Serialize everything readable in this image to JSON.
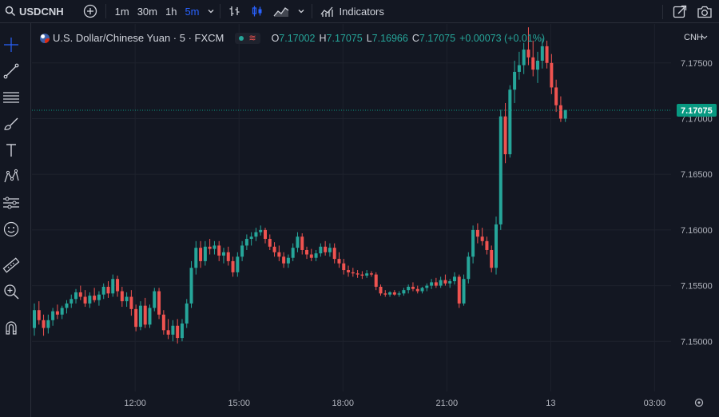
{
  "topbar": {
    "symbol": "USDCNH",
    "intervals": [
      {
        "label": "1m",
        "active": false
      },
      {
        "label": "30m",
        "active": false
      },
      {
        "label": "1h",
        "active": false
      },
      {
        "label": "5m",
        "active": true
      }
    ],
    "indicators_label": "Indicators"
  },
  "legend": {
    "title": "U.S. Dollar/Chinese Yuan · 5 · FXCM",
    "ohlc": [
      {
        "key": "O",
        "value": "7.17002"
      },
      {
        "key": "H",
        "value": "7.17075"
      },
      {
        "key": "L",
        "value": "7.16966"
      },
      {
        "key": "C",
        "value": "7.17075"
      }
    ],
    "change": "+0.00073 (+0.01%)"
  },
  "colors": {
    "background": "#131722",
    "up": "#26a69a",
    "down": "#ef5350",
    "grid": "#1e222d",
    "axis_text": "#b2b5be",
    "price_tag": "#089981",
    "active_interval": "#2962ff"
  },
  "chart_data": {
    "type": "candlestick",
    "currency_label": "CNH",
    "y_ticks": [
      "7.17500",
      "7.17000",
      "7.16500",
      "7.16000",
      "7.15500",
      "7.15000"
    ],
    "y_tick_values": [
      7.175,
      7.17,
      7.165,
      7.16,
      7.155,
      7.15
    ],
    "x_ticks": [
      "12:00",
      "15:00",
      "18:00",
      "21:00",
      "13",
      "03:00"
    ],
    "last_price_label": "7.17075",
    "last_price": 7.17075,
    "ylim": [
      7.1455,
      7.1785
    ],
    "grid": true,
    "candles": [
      [
        7.1512,
        7.1534,
        7.1505,
        7.1528
      ],
      [
        7.1528,
        7.1536,
        7.1515,
        7.1519
      ],
      [
        7.1519,
        7.1524,
        7.1505,
        7.1512
      ],
      [
        7.1512,
        7.1524,
        7.1507,
        7.1519
      ],
      [
        7.1519,
        7.153,
        7.1514,
        7.1527
      ],
      [
        7.1527,
        7.1533,
        7.152,
        7.1524
      ],
      [
        7.1524,
        7.1532,
        7.152,
        7.153
      ],
      [
        7.153,
        7.1537,
        7.1525,
        7.1534
      ],
      [
        7.1534,
        7.1542,
        7.153,
        7.1538
      ],
      [
        7.1538,
        7.1547,
        7.1534,
        7.1544
      ],
      [
        7.1544,
        7.155,
        7.1537,
        7.154
      ],
      [
        7.154,
        7.1546,
        7.1531,
        7.1534
      ],
      [
        7.1534,
        7.1544,
        7.153,
        7.1541
      ],
      [
        7.1541,
        7.1548,
        7.1535,
        7.1537
      ],
      [
        7.1537,
        7.1545,
        7.1532,
        7.1542
      ],
      [
        7.1542,
        7.1552,
        7.1538,
        7.1549
      ],
      [
        7.1549,
        7.1554,
        7.1539,
        7.1543
      ],
      [
        7.1543,
        7.156,
        7.154,
        7.1556
      ],
      [
        7.1556,
        7.1559,
        7.154,
        7.1545
      ],
      [
        7.1545,
        7.1549,
        7.1531,
        7.1536
      ],
      [
        7.1536,
        7.1544,
        7.1531,
        7.154
      ],
      [
        7.154,
        7.1546,
        7.1523,
        7.1529
      ],
      [
        7.1529,
        7.1533,
        7.1509,
        7.1513
      ],
      [
        7.1513,
        7.1536,
        7.151,
        7.1532
      ],
      [
        7.1532,
        7.1539,
        7.1512,
        7.1515
      ],
      [
        7.1515,
        7.1533,
        7.1512,
        7.153
      ],
      [
        7.153,
        7.1548,
        7.1527,
        7.1545
      ],
      [
        7.1545,
        7.1548,
        7.152,
        7.1524
      ],
      [
        7.1524,
        7.1528,
        7.1506,
        7.151
      ],
      [
        7.151,
        7.152,
        7.1502,
        7.1506
      ],
      [
        7.1506,
        7.1519,
        7.15,
        7.1514
      ],
      [
        7.1514,
        7.152,
        7.1498,
        7.1503
      ],
      [
        7.1503,
        7.152,
        7.15,
        7.1516
      ],
      [
        7.1516,
        7.1538,
        7.1512,
        7.1534
      ],
      [
        7.1534,
        7.1572,
        7.153,
        7.1566
      ],
      [
        7.1566,
        7.159,
        7.156,
        7.1584
      ],
      [
        7.1584,
        7.159,
        7.1566,
        7.1572
      ],
      [
        7.1572,
        7.159,
        7.1568,
        7.1585
      ],
      [
        7.1585,
        7.1592,
        7.1578,
        7.1583
      ],
      [
        7.1583,
        7.159,
        7.1578,
        7.1586
      ],
      [
        7.1586,
        7.159,
        7.1572,
        7.1577
      ],
      [
        7.1577,
        7.1584,
        7.157,
        7.158
      ],
      [
        7.158,
        7.1585,
        7.1568,
        7.1572
      ],
      [
        7.1572,
        7.1576,
        7.1558,
        7.1562
      ],
      [
        7.1562,
        7.158,
        7.1558,
        7.1576
      ],
      [
        7.1576,
        7.159,
        7.1572,
        7.1586
      ],
      [
        7.1586,
        7.1596,
        7.1582,
        7.1592
      ],
      [
        7.1592,
        7.1598,
        7.1586,
        7.1594
      ],
      [
        7.1594,
        7.1602,
        7.159,
        7.1598
      ],
      [
        7.1598,
        7.1604,
        7.1595,
        7.16
      ],
      [
        7.16,
        7.1602,
        7.1588,
        7.1592
      ],
      [
        7.1592,
        7.1596,
        7.1582,
        7.1585
      ],
      [
        7.1585,
        7.1589,
        7.1576,
        7.158
      ],
      [
        7.158,
        7.1586,
        7.1572,
        7.1576
      ],
      [
        7.1576,
        7.158,
        7.1566,
        7.157
      ],
      [
        7.157,
        7.1578,
        7.1566,
        7.1575
      ],
      [
        7.1575,
        7.1588,
        7.1572,
        7.1584
      ],
      [
        7.1584,
        7.1598,
        7.158,
        7.1594
      ],
      [
        7.1594,
        7.1597,
        7.1578,
        7.1582
      ],
      [
        7.1582,
        7.1585,
        7.1574,
        7.1578
      ],
      [
        7.1578,
        7.1583,
        7.1572,
        7.1575
      ],
      [
        7.1575,
        7.1582,
        7.1572,
        7.1579
      ],
      [
        7.1579,
        7.1588,
        7.1576,
        7.1585
      ],
      [
        7.1585,
        7.159,
        7.1577,
        7.158
      ],
      [
        7.158,
        7.1588,
        7.1576,
        7.1584
      ],
      [
        7.1584,
        7.1588,
        7.157,
        7.1574
      ],
      [
        7.1574,
        7.158,
        7.1566,
        7.157
      ],
      [
        7.157,
        7.1574,
        7.156,
        7.1564
      ],
      [
        7.1564,
        7.1568,
        7.1558,
        7.1562
      ],
      [
        7.1562,
        7.1566,
        7.1558,
        7.1561
      ],
      [
        7.1561,
        7.1564,
        7.1557,
        7.156
      ],
      [
        7.156,
        7.1563,
        7.1556,
        7.1559
      ],
      [
        7.1559,
        7.1564,
        7.1557,
        7.1561
      ],
      [
        7.1561,
        7.1563,
        7.1558,
        7.156
      ],
      [
        7.156,
        7.1562,
        7.1546,
        7.1549
      ],
      [
        7.1549,
        7.1551,
        7.1541,
        7.1543
      ],
      [
        7.1543,
        7.1546,
        7.154,
        7.1542
      ],
      [
        7.1542,
        7.1545,
        7.154,
        7.1544
      ],
      [
        7.1544,
        7.1546,
        7.1541,
        7.1542
      ],
      [
        7.1542,
        7.1545,
        7.154,
        7.1543
      ],
      [
        7.1543,
        7.1548,
        7.1541,
        7.1546
      ],
      [
        7.1546,
        7.1551,
        7.1543,
        7.1549
      ],
      [
        7.1549,
        7.1553,
        7.1545,
        7.1547
      ],
      [
        7.1547,
        7.155,
        7.1543,
        7.1545
      ],
      [
        7.1545,
        7.1549,
        7.1543,
        7.1548
      ],
      [
        7.1548,
        7.1552,
        7.1545,
        7.155
      ],
      [
        7.155,
        7.1556,
        7.1547,
        7.1553
      ],
      [
        7.1553,
        7.1557,
        7.1548,
        7.155
      ],
      [
        7.155,
        7.1558,
        7.1548,
        7.1555
      ],
      [
        7.1555,
        7.156,
        7.155,
        7.1552
      ],
      [
        7.1552,
        7.1556,
        7.1548,
        7.1554
      ],
      [
        7.1554,
        7.1562,
        7.1551,
        7.1558
      ],
      [
        7.1558,
        7.156,
        7.153,
        7.1534
      ],
      [
        7.1534,
        7.156,
        7.1532,
        7.1556
      ],
      [
        7.1556,
        7.158,
        7.1552,
        7.1576
      ],
      [
        7.1576,
        7.1604,
        7.157,
        7.16
      ],
      [
        7.16,
        7.1606,
        7.1588,
        7.1594
      ],
      [
        7.1594,
        7.1602,
        7.1586,
        7.159
      ],
      [
        7.159,
        7.1594,
        7.1578,
        7.1582
      ],
      [
        7.1582,
        7.1586,
        7.1562,
        7.1566
      ],
      [
        7.1566,
        7.1612,
        7.156,
        7.1605
      ],
      [
        7.1605,
        7.1708,
        7.16,
        7.1702
      ],
      [
        7.1702,
        7.1714,
        7.166,
        7.1668
      ],
      [
        7.1668,
        7.173,
        7.1665,
        7.1726
      ],
      [
        7.1726,
        7.1752,
        7.1714,
        7.1742
      ],
      [
        7.1742,
        7.176,
        7.1735,
        7.1748
      ],
      [
        7.1748,
        7.1768,
        7.174,
        7.1762
      ],
      [
        7.1762,
        7.1782,
        7.1748,
        7.1755
      ],
      [
        7.1755,
        7.177,
        7.1738,
        7.1744
      ],
      [
        7.1744,
        7.176,
        7.1732,
        7.1752
      ],
      [
        7.1752,
        7.1772,
        7.1745,
        7.1765
      ],
      [
        7.1765,
        7.177,
        7.1745,
        7.175
      ],
      [
        7.175,
        7.1758,
        7.1722,
        7.1728
      ],
      [
        7.1728,
        7.1735,
        7.1706,
        7.1712
      ],
      [
        7.1712,
        7.172,
        7.1697,
        7.17
      ],
      [
        7.17,
        7.1708,
        7.1697,
        7.17075
      ]
    ]
  }
}
